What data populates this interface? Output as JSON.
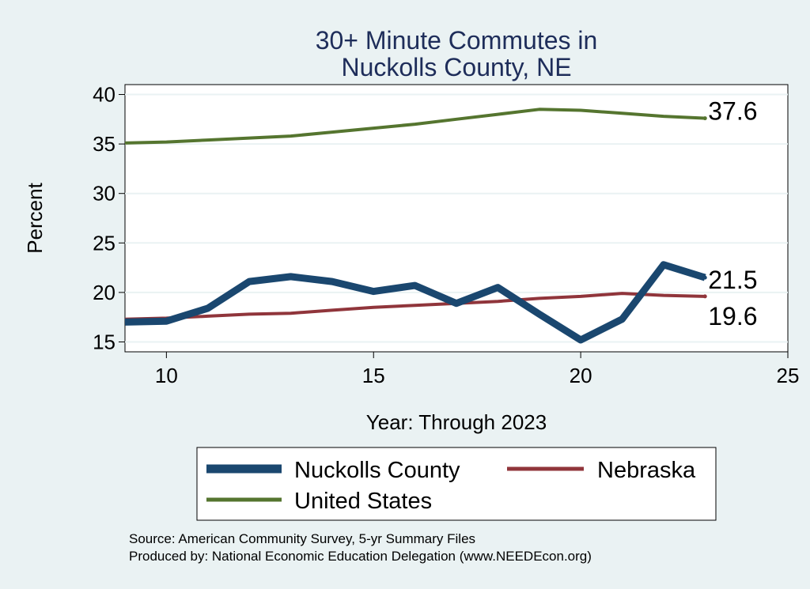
{
  "chart_data": {
    "type": "line",
    "title_line1": "30+ Minute Commutes in",
    "title_line2": "Nuckolls County, NE",
    "xlabel": "Year: Through 2023",
    "ylabel": "Percent",
    "xlim": [
      9,
      25
    ],
    "ylim": [
      14,
      41
    ],
    "xticks": [
      10,
      15,
      20,
      25
    ],
    "yticks": [
      15,
      20,
      25,
      30,
      35,
      40
    ],
    "grid": true,
    "legend_position": "bottom",
    "series": [
      {
        "name": "Nuckolls County",
        "color": "#1a476f",
        "x": [
          9,
          10,
          11,
          12,
          13,
          14,
          15,
          16,
          17,
          18,
          19,
          20,
          21,
          22,
          23
        ],
        "y": [
          17.0,
          17.1,
          18.4,
          21.1,
          21.6,
          21.1,
          20.1,
          20.7,
          18.9,
          20.5,
          17.8,
          15.2,
          17.3,
          22.8,
          21.5
        ],
        "end_label": "21.5"
      },
      {
        "name": "Nebraska",
        "color": "#90353b",
        "x": [
          9,
          10,
          11,
          12,
          13,
          14,
          15,
          16,
          17,
          18,
          19,
          20,
          21,
          22,
          23
        ],
        "y": [
          17.3,
          17.4,
          17.6,
          17.8,
          17.9,
          18.2,
          18.5,
          18.7,
          18.9,
          19.1,
          19.4,
          19.6,
          19.9,
          19.7,
          19.6
        ],
        "end_label": "19.6"
      },
      {
        "name": "United States",
        "color": "#55752f",
        "x": [
          9,
          10,
          11,
          12,
          13,
          14,
          15,
          16,
          17,
          18,
          19,
          20,
          21,
          22,
          23
        ],
        "y": [
          35.1,
          35.2,
          35.4,
          35.6,
          35.8,
          36.2,
          36.6,
          37.0,
          37.5,
          38.0,
          38.5,
          38.4,
          38.1,
          37.8,
          37.6
        ],
        "end_label": "37.6"
      }
    ],
    "source_note": "Source: American Community Survey, 5-yr Summary Files",
    "produced_note": "Produced by: National Economic Education Delegation (www.NEEDEcon.org)"
  }
}
